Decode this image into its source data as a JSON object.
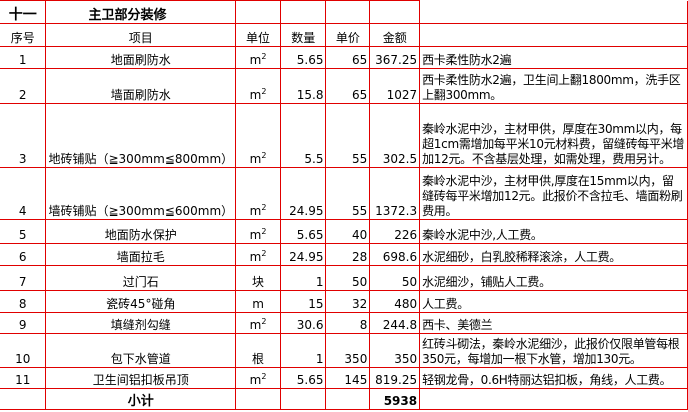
{
  "section": {
    "number": "十一",
    "title": "主卫部分装修"
  },
  "headers": [
    "序号",
    "项目",
    "单位",
    "数量",
    "单价",
    "金额",
    ""
  ],
  "rows": [
    {
      "no": "1",
      "item": "地面刷防水",
      "unit": "m",
      "unit_sup": "2",
      "qty": "5.65",
      "price": "65",
      "amount": "367.25",
      "note": "西卡柔性防水2遍"
    },
    {
      "no": "2",
      "item": "墙面刷防水",
      "unit": "m",
      "unit_sup": "2",
      "qty": "15.8",
      "price": "65",
      "amount": "1027",
      "note": "西卡柔性防水2遍，卫生间上翻1800mm，洗手区上翻300mm。"
    },
    {
      "no": "3",
      "item": "地砖铺贴（≧300mm≦800mm）",
      "unit": "m",
      "unit_sup": "2",
      "qty": "5.5",
      "price": "55",
      "amount": "302.5",
      "note": "秦岭水泥中沙，主材甲供，厚度在30mm以内，每超1cm需增加每平米10元材料费，留缝砖每平米增加12元。不含基层处理，如需处理，费用另计。"
    },
    {
      "no": "4",
      "item": "墙砖铺贴（≧300mm≦600mm）",
      "unit": "m",
      "unit_sup": "2",
      "qty": "24.95",
      "price": "55",
      "amount": "1372.3",
      "note": "秦岭水泥中沙，主材甲供,厚度在15mm以内，留缝砖每平米增加12元。此报价不含拉毛、墙面粉刷费用。"
    },
    {
      "no": "5",
      "item": "地面防水保护",
      "unit": "m",
      "unit_sup": "2",
      "qty": "5.65",
      "price": "40",
      "amount": "226",
      "note": "秦岭水泥中沙,人工费。"
    },
    {
      "no": "6",
      "item": "墙面拉毛",
      "unit": "m",
      "unit_sup": "2",
      "qty": "24.95",
      "price": "28",
      "amount": "698.6",
      "note": "水泥细砂，白乳胶稀释滚涂，人工费。"
    },
    {
      "no": "7",
      "item": "过门石",
      "unit": "块",
      "unit_sup": "",
      "qty": "1",
      "price": "50",
      "amount": "50",
      "note": "水泥细沙，铺贴人工费。"
    },
    {
      "no": "8",
      "item": "瓷砖45°碰角",
      "unit": "m",
      "unit_sup": "",
      "qty": "15",
      "price": "32",
      "amount": "480",
      "note": "人工费。"
    },
    {
      "no": "9",
      "item": "填缝剂勾缝",
      "unit": "m",
      "unit_sup": "2",
      "qty": "30.6",
      "price": "8",
      "amount": "244.8",
      "note": "西卡、美德兰"
    },
    {
      "no": "10",
      "item": "包下水管道",
      "unit": "根",
      "unit_sup": "",
      "qty": "1",
      "price": "350",
      "amount": "350",
      "note": "红砖斗砌法，秦岭水泥细沙，此报价仅限单管每根350元，每增加一根下水管，增加130元。"
    },
    {
      "no": "11",
      "item": "卫生间铝扣板吊顶",
      "unit": "m",
      "unit_sup": "2",
      "qty": "5.65",
      "price": "145",
      "amount": "819.25",
      "note": "轻钢龙骨，0.6H特丽达铝扣板，角线，人工费。"
    }
  ],
  "subtotal": {
    "label": "小计",
    "amount": "5938"
  },
  "colors": {
    "grid": "#e00000",
    "background": "#ffffff",
    "text": "#000000"
  }
}
